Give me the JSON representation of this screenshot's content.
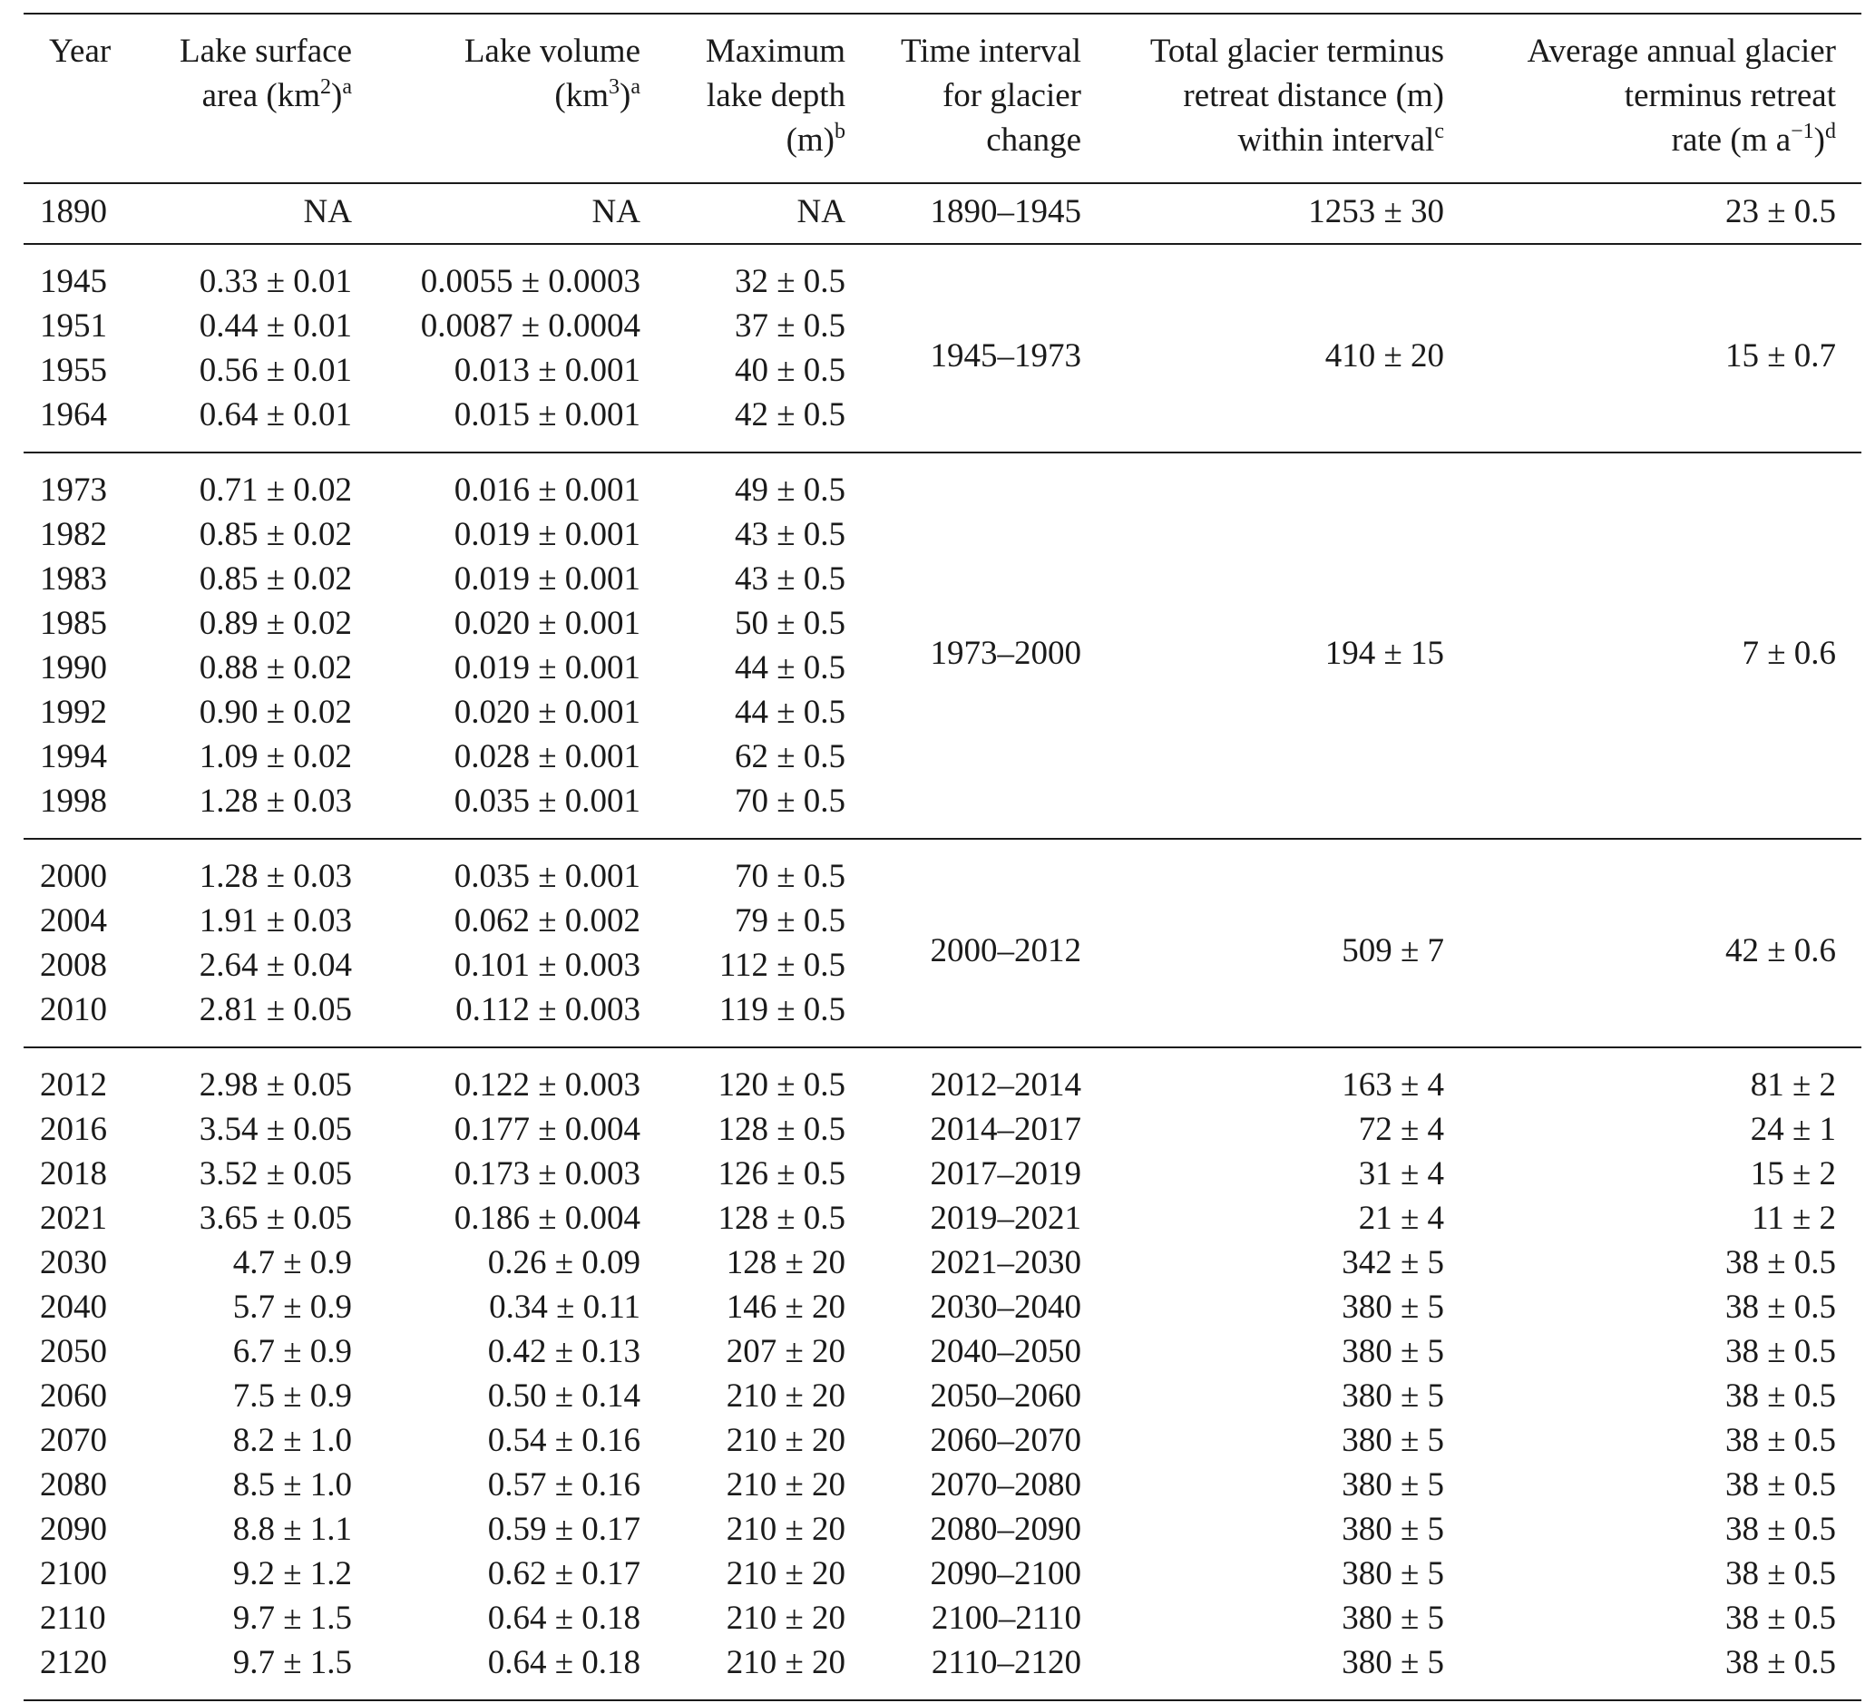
{
  "table": {
    "headers": {
      "year": [
        "Year"
      ],
      "area": [
        "Lake surface",
        "area (km",
        "2",
        ")",
        "a"
      ],
      "volume": [
        "Lake volume",
        "(km",
        "3",
        ")",
        "a"
      ],
      "depth": [
        "Maximum",
        "lake depth",
        "(m)",
        "b"
      ],
      "interval": [
        "Time interval",
        "for glacier",
        "change"
      ],
      "distance": [
        "Total glacier terminus",
        "retreat distance (m)",
        "within interval",
        "c"
      ],
      "rate": [
        "Average annual glacier",
        "terminus retreat",
        "rate (m a",
        "−1",
        ")",
        "d"
      ]
    },
    "groups": [
      {
        "interval": "1890–1945",
        "distance": "1253 ± 30",
        "rate": "23 ± 0.5",
        "rows": [
          {
            "year": "1890",
            "area": "NA",
            "volume": "NA",
            "depth": "NA"
          }
        ]
      },
      {
        "interval": "1945–1973",
        "distance": "410 ± 20",
        "rate": "15 ± 0.7",
        "rows": [
          {
            "year": "1945",
            "area": "0.33 ± 0.01",
            "volume": "0.0055 ± 0.0003",
            "depth": "32 ± 0.5"
          },
          {
            "year": "1951",
            "area": "0.44 ± 0.01",
            "volume": "0.0087 ± 0.0004",
            "depth": "37 ± 0.5"
          },
          {
            "year": "1955",
            "area": "0.56 ± 0.01",
            "volume": "0.013 ± 0.001",
            "depth": "40 ± 0.5"
          },
          {
            "year": "1964",
            "area": "0.64 ± 0.01",
            "volume": "0.015 ± 0.001",
            "depth": "42 ± 0.5"
          }
        ]
      },
      {
        "interval": "1973–2000",
        "distance": "194 ± 15",
        "rate": "7 ± 0.6",
        "rows": [
          {
            "year": "1973",
            "area": "0.71 ± 0.02",
            "volume": "0.016 ± 0.001",
            "depth": "49 ± 0.5"
          },
          {
            "year": "1982",
            "area": "0.85 ± 0.02",
            "volume": "0.019 ± 0.001",
            "depth": "43 ± 0.5"
          },
          {
            "year": "1983",
            "area": "0.85 ± 0.02",
            "volume": "0.019 ± 0.001",
            "depth": "43 ± 0.5"
          },
          {
            "year": "1985",
            "area": "0.89 ± 0.02",
            "volume": "0.020 ± 0.001",
            "depth": "50 ± 0.5"
          },
          {
            "year": "1990",
            "area": "0.88 ± 0.02",
            "volume": "0.019 ± 0.001",
            "depth": "44 ± 0.5"
          },
          {
            "year": "1992",
            "area": "0.90 ± 0.02",
            "volume": "0.020 ± 0.001",
            "depth": "44 ± 0.5"
          },
          {
            "year": "1994",
            "area": "1.09 ± 0.02",
            "volume": "0.028 ± 0.001",
            "depth": "62 ± 0.5"
          },
          {
            "year": "1998",
            "area": "1.28 ± 0.03",
            "volume": "0.035 ± 0.001",
            "depth": "70 ± 0.5"
          }
        ]
      },
      {
        "interval": "2000–2012",
        "distance": "509 ± 7",
        "rate": "42 ± 0.6",
        "rows": [
          {
            "year": "2000",
            "area": "1.28 ± 0.03",
            "volume": "0.035 ± 0.001",
            "depth": "70 ± 0.5"
          },
          {
            "year": "2004",
            "area": "1.91 ± 0.03",
            "volume": "0.062 ± 0.002",
            "depth": "79 ± 0.5"
          },
          {
            "year": "2008",
            "area": "2.64 ± 0.04",
            "volume": "0.101 ± 0.003",
            "depth": "112 ± 0.5"
          },
          {
            "year": "2010",
            "area": "2.81 ± 0.05",
            "volume": "0.112 ± 0.003",
            "depth": "119 ± 0.5"
          }
        ]
      },
      {
        "interval": null,
        "distance": null,
        "rate": null,
        "rows": [
          {
            "year": "2012",
            "area": "2.98 ± 0.05",
            "volume": "0.122 ± 0.003",
            "depth": "120 ± 0.5",
            "interval": "2012–2014",
            "distance": "163 ± 4",
            "rate": "81 ± 2"
          },
          {
            "year": "2016",
            "area": "3.54 ± 0.05",
            "volume": "0.177 ± 0.004",
            "depth": "128 ± 0.5",
            "interval": "2014–2017",
            "distance": "72 ± 4",
            "rate": "24 ± 1"
          },
          {
            "year": "2018",
            "area": "3.52 ± 0.05",
            "volume": "0.173 ± 0.003",
            "depth": "126 ± 0.5",
            "interval": "2017–2019",
            "distance": "31 ± 4",
            "rate": "15 ± 2"
          },
          {
            "year": "2021",
            "area": "3.65 ± 0.05",
            "volume": "0.186 ± 0.004",
            "depth": "128 ± 0.5",
            "interval": "2019–2021",
            "distance": "21 ± 4",
            "rate": "11 ± 2"
          },
          {
            "year": "2030",
            "area": "4.7 ± 0.9",
            "volume": "0.26 ± 0.09",
            "depth": "128 ± 20",
            "interval": "2021–2030",
            "distance": "342 ± 5",
            "rate": "38 ± 0.5"
          },
          {
            "year": "2040",
            "area": "5.7 ± 0.9",
            "volume": "0.34 ± 0.11",
            "depth": "146 ± 20",
            "interval": "2030–2040",
            "distance": "380 ± 5",
            "rate": "38 ± 0.5"
          },
          {
            "year": "2050",
            "area": "6.7 ± 0.9",
            "volume": "0.42 ± 0.13",
            "depth": "207 ± 20",
            "interval": "2040–2050",
            "distance": "380 ± 5",
            "rate": "38 ± 0.5"
          },
          {
            "year": "2060",
            "area": "7.5 ± 0.9",
            "volume": "0.50 ± 0.14",
            "depth": "210 ± 20",
            "interval": "2050–2060",
            "distance": "380 ± 5",
            "rate": "38 ± 0.5"
          },
          {
            "year": "2070",
            "area": "8.2 ± 1.0",
            "volume": "0.54 ± 0.16",
            "depth": "210 ± 20",
            "interval": "2060–2070",
            "distance": "380 ± 5",
            "rate": "38 ± 0.5"
          },
          {
            "year": "2080",
            "area": "8.5 ± 1.0",
            "volume": "0.57 ± 0.16",
            "depth": "210 ± 20",
            "interval": "2070–2080",
            "distance": "380 ± 5",
            "rate": "38 ± 0.5"
          },
          {
            "year": "2090",
            "area": "8.8 ± 1.1",
            "volume": "0.59 ± 0.17",
            "depth": "210 ± 20",
            "interval": "2080–2090",
            "distance": "380 ± 5",
            "rate": "38 ± 0.5"
          },
          {
            "year": "2100",
            "area": "9.2 ± 1.2",
            "volume": "0.62 ± 0.17",
            "depth": "210 ± 20",
            "interval": "2090–2100",
            "distance": "380 ± 5",
            "rate": "38 ± 0.5"
          },
          {
            "year": "2110",
            "area": "9.7 ± 1.5",
            "volume": "0.64 ± 0.18",
            "depth": "210 ± 20",
            "interval": "2100–2110",
            "distance": "380 ± 5",
            "rate": "38 ± 0.5"
          },
          {
            "year": "2120",
            "area": "9.7 ± 1.5",
            "volume": "0.64 ± 0.18",
            "depth": "210 ± 20",
            "interval": "2110–2120",
            "distance": "380 ± 5",
            "rate": "38 ± 0.5"
          }
        ]
      }
    ]
  }
}
